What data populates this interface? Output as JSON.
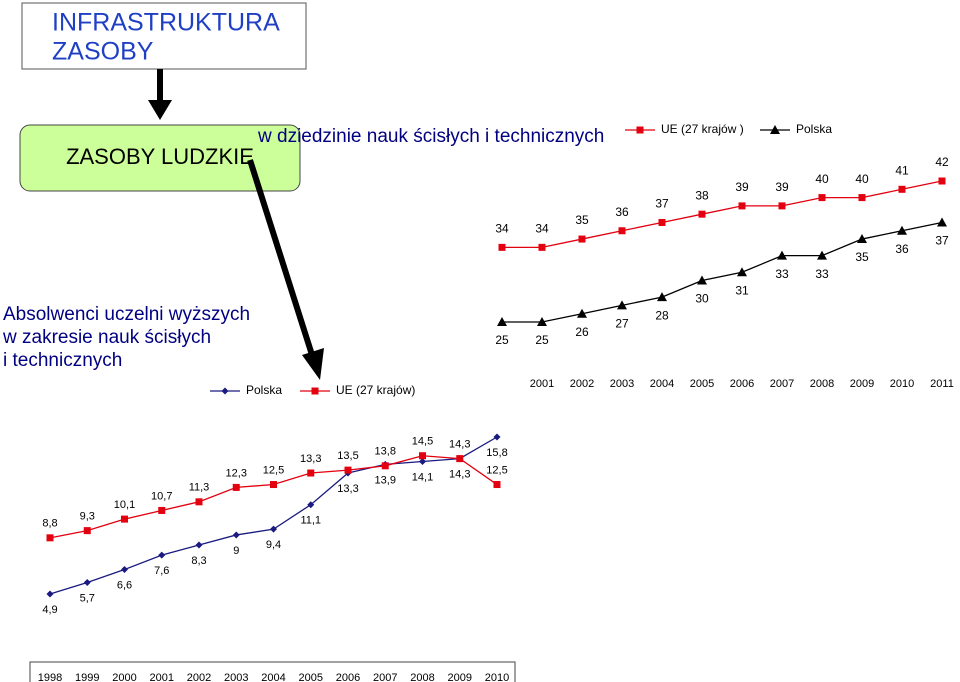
{
  "header": {
    "lines": [
      "INFRASTRUKTURA",
      "ZASOBY"
    ]
  },
  "category_box": "ZASOBY LUDZKIE",
  "subtitle": "w dziedzinie nauk ścisłych i technicznych",
  "side_label": {
    "lines": [
      "Absolwenci uczelni wyższych",
      "w zakresie nauk ścisłych",
      "i technicznych"
    ]
  },
  "chart_data": [
    {
      "type": "line",
      "categories": [
        null,
        "2001",
        "2002",
        "2003",
        "2004",
        "2005",
        "2006",
        "2007",
        "2008",
        "2009",
        "2010",
        "2011"
      ],
      "series": [
        {
          "name": "UE (27 krajów )",
          "color": "#e3000f",
          "marker": "square",
          "values": [
            34,
            34,
            35,
            36,
            37,
            38,
            39,
            39,
            40,
            40,
            41,
            42
          ]
        },
        {
          "name": "Polska",
          "color": "#000000",
          "marker": "triangle",
          "values": [
            25,
            25,
            26,
            27,
            28,
            30,
            31,
            33,
            33,
            35,
            36,
            37
          ]
        }
      ]
    },
    {
      "type": "line",
      "categories": [
        "1998",
        "1999",
        "2000",
        "2001",
        "2002",
        "2003",
        "2004",
        "2005",
        "2006",
        "2007",
        "2008",
        "2009",
        "2010"
      ],
      "series": [
        {
          "name": "Polska",
          "color": "#1a1a80",
          "marker": "diamond",
          "values": [
            4.9,
            5.7,
            6.6,
            7.6,
            8.3,
            9,
            9.4,
            11.1,
            13.3,
            13.9,
            14.1,
            14.3,
            15.8
          ],
          "value_labels": [
            "4,9",
            "5,7",
            "6,6",
            "7,6",
            "8,3",
            "9",
            "9,4",
            "11,1",
            "13,3",
            "13,9",
            "14,1",
            "14,3",
            "15,8"
          ]
        },
        {
          "name": "UE (27 krajów)",
          "color": "#e3000f",
          "marker": "square",
          "values": [
            8.8,
            9.3,
            10.1,
            10.7,
            11.3,
            12.3,
            12.5,
            13.3,
            13.5,
            13.8,
            14.5,
            14.3,
            12.5
          ],
          "value_labels": [
            "8,8",
            "9,3",
            "10,1",
            "10,7",
            "11,3",
            "12,3",
            "12,5",
            "13,3",
            "13,5",
            "13,8",
            "14,5",
            "14,3",
            "12,5"
          ]
        }
      ]
    }
  ]
}
